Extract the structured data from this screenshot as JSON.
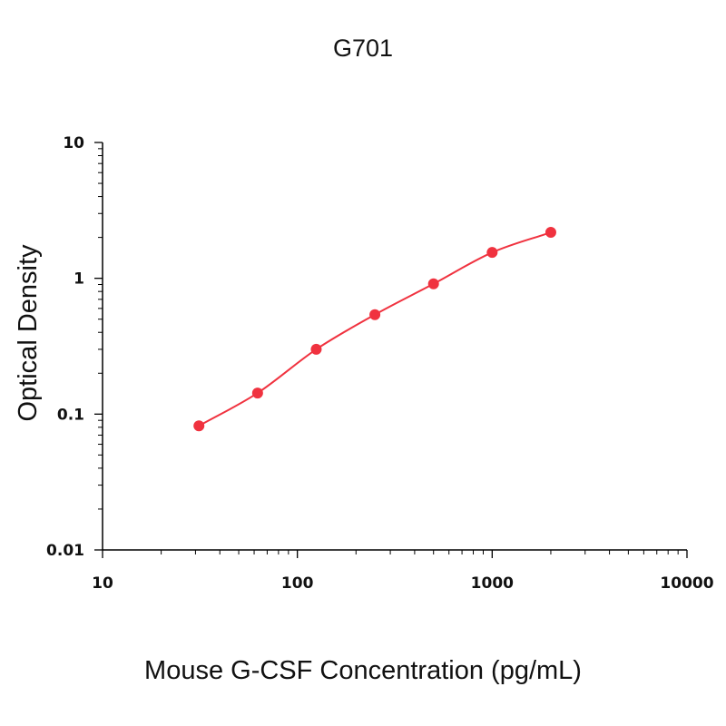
{
  "chart_data": {
    "type": "scatter",
    "title": "G701",
    "xlabel": "Mouse G-CSF Concentration (pg/mL)",
    "ylabel": "Optical Density",
    "x_scale": "log",
    "y_scale": "log",
    "xlim": [
      10,
      10000
    ],
    "ylim": [
      0.01,
      10
    ],
    "x_tick_labels": [
      "10",
      "100",
      "1000",
      "10000"
    ],
    "y_tick_labels": [
      "0.01",
      "0.1",
      "1",
      "10"
    ],
    "grid": false,
    "legend": "none",
    "series": [
      {
        "color": "#f0323f",
        "marker": "circle",
        "fit_line": true,
        "x": [
          31.25,
          62.5,
          125,
          250,
          500,
          1000,
          2000
        ],
        "y": [
          0.082,
          0.143,
          0.3,
          0.54,
          0.91,
          1.55,
          2.18
        ]
      }
    ]
  }
}
